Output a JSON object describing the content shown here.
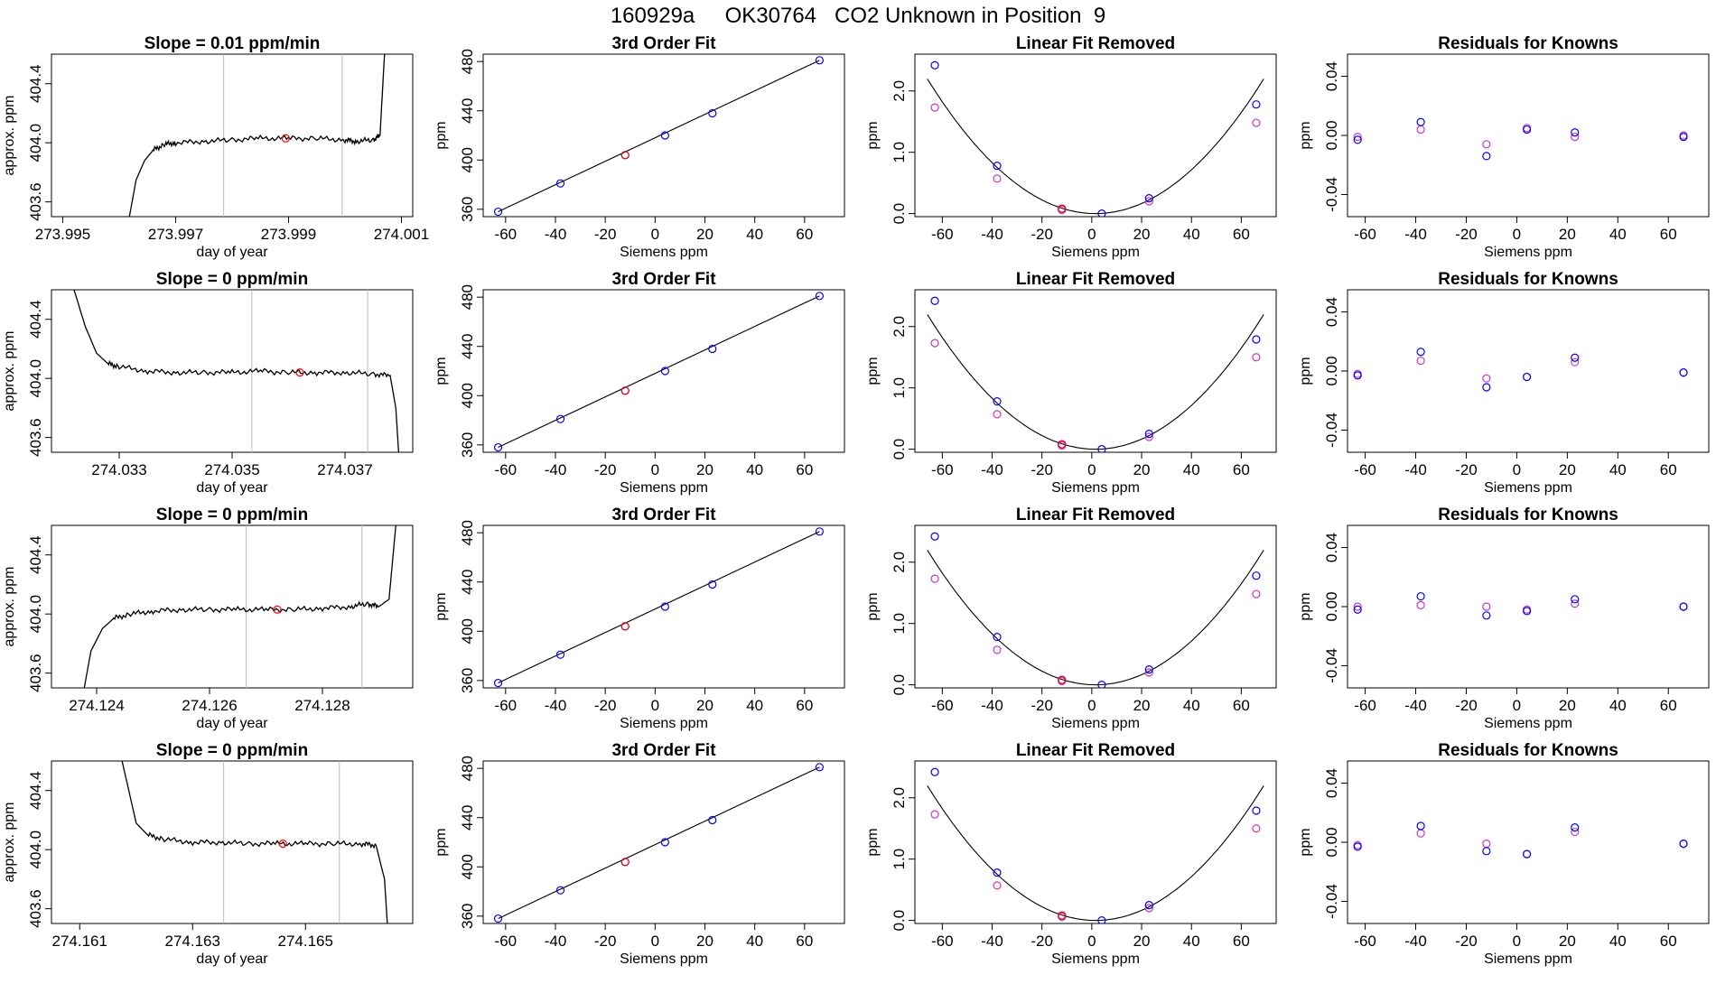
{
  "title": "160929a     OK30764   CO2 Unknown in Position  9",
  "colors": {
    "known": "#0000ff",
    "alt": "#cc33cc",
    "unknown": "#ff0000",
    "line": "#000000",
    "marker": "#bbbbbb"
  },
  "chart_data": [
    {
      "panel": "r1-trace",
      "type": "line",
      "title": "Slope =  0.01  ppm/min",
      "xlabel": "day of year",
      "ylabel": "approx. ppm",
      "xlim": [
        273.9948,
        274.0012
      ],
      "ylim": [
        403.5,
        404.6
      ],
      "xticks": [
        "273.995",
        "273.997",
        "273.999",
        "274.001"
      ],
      "yticks": [
        "403.6",
        "404.0",
        "404.4"
      ],
      "vlines": [
        273.99785,
        273.99995
      ],
      "highlight": [
        273.99895,
        404.03
      ],
      "trace": [
        [
          273.99618,
          403.5
        ],
        [
          273.9963,
          403.75
        ],
        [
          273.99645,
          403.88
        ],
        [
          273.9966,
          403.95
        ],
        [
          273.9968,
          403.99
        ],
        [
          273.997,
          404.0
        ],
        [
          273.9975,
          404.01
        ],
        [
          273.998,
          404.02
        ],
        [
          273.9985,
          404.03
        ],
        [
          273.999,
          404.03
        ],
        [
          273.9995,
          404.03
        ],
        [
          274.0,
          404.02
        ],
        [
          274.0002,
          404.01
        ],
        [
          274.0005,
          404.02
        ],
        [
          274.00062,
          404.05
        ],
        [
          274.0007,
          404.6
        ]
      ]
    },
    {
      "panel": "r1-fit",
      "type": "scatter",
      "title": "3rd Order Fit",
      "xlabel": "Siemens ppm",
      "ylabel": "ppm",
      "xlim": [
        -69,
        76
      ],
      "ylim": [
        354,
        486
      ],
      "xticks": [
        "-60",
        "-40",
        "-20",
        "0",
        "20",
        "40",
        "60"
      ],
      "yticks": [
        "360",
        "400",
        "440",
        "480"
      ],
      "known": [
        [
          -63,
          358
        ],
        [
          -38,
          381
        ],
        [
          -12,
          404
        ],
        [
          4,
          420
        ],
        [
          23,
          438
        ],
        [
          66,
          481
        ]
      ],
      "unknown": [
        [
          -12,
          404
        ]
      ]
    },
    {
      "panel": "r1-linear",
      "type": "scatter",
      "title": "Linear Fit Removed",
      "xlabel": "Siemens ppm",
      "ylabel": "ppm",
      "xlim": [
        -71,
        74
      ],
      "ylim": [
        -0.05,
        2.6
      ],
      "xticks": [
        "-60",
        "-40",
        "-20",
        "0",
        "20",
        "40",
        "60"
      ],
      "yticks": [
        "0.0",
        "1.0",
        "2.0"
      ],
      "known": [
        [
          -63,
          2.42
        ],
        [
          -38,
          0.78
        ],
        [
          -12,
          0.08
        ],
        [
          4,
          0.0
        ],
        [
          23,
          0.25
        ],
        [
          66,
          1.78
        ]
      ],
      "alt": [
        [
          -63,
          1.73
        ],
        [
          -38,
          0.57
        ],
        [
          -12,
          0.06
        ],
        [
          23,
          0.2
        ],
        [
          66,
          1.48
        ]
      ],
      "unknown": [
        [
          -12,
          0.08
        ]
      ]
    },
    {
      "panel": "r1-resid",
      "type": "scatter",
      "title": "Residuals for Knowns",
      "xlabel": "Siemens ppm",
      "ylabel": "ppm",
      "xlim": [
        -67,
        76
      ],
      "ylim": [
        -0.055,
        0.055
      ],
      "xticks": [
        "-60",
        "-40",
        "-20",
        "0",
        "20",
        "40",
        "60"
      ],
      "yticks": [
        "-0.04",
        "0.00",
        "0.04"
      ],
      "known": [
        [
          -63,
          -0.003
        ],
        [
          -38,
          0.009
        ],
        [
          -12,
          -0.014
        ],
        [
          4,
          0.004
        ],
        [
          23,
          0.002
        ],
        [
          66,
          -0.001
        ]
      ],
      "alt": [
        [
          -63,
          -0.001
        ],
        [
          -38,
          0.004
        ],
        [
          -12,
          -0.006
        ],
        [
          4,
          0.005
        ],
        [
          23,
          -0.001
        ],
        [
          66,
          0.0
        ]
      ]
    },
    {
      "panel": "r2-trace",
      "type": "line",
      "title": "Slope =  0  ppm/min",
      "xlabel": "day of year",
      "ylabel": "approx. ppm",
      "xlim": [
        274.0318,
        274.0382
      ],
      "ylim": [
        403.5,
        404.6
      ],
      "xticks": [
        "274.033",
        "274.035",
        "274.037"
      ],
      "yticks": [
        "403.6",
        "404.0",
        "404.4"
      ],
      "vlines": [
        274.03535,
        274.0374
      ],
      "highlight": [
        274.0362,
        404.04
      ],
      "trace": [
        [
          274.0322,
          404.6
        ],
        [
          274.0324,
          404.35
        ],
        [
          274.0326,
          404.17
        ],
        [
          274.0328,
          404.1
        ],
        [
          274.033,
          404.08
        ],
        [
          274.0335,
          404.05
        ],
        [
          274.034,
          404.04
        ],
        [
          274.0345,
          404.04
        ],
        [
          274.035,
          404.04
        ],
        [
          274.0355,
          404.05
        ],
        [
          274.036,
          404.04
        ],
        [
          274.0365,
          404.04
        ],
        [
          274.037,
          404.04
        ],
        [
          274.0375,
          404.03
        ],
        [
          274.0378,
          404.02
        ],
        [
          274.0379,
          403.8
        ],
        [
          274.03795,
          403.5
        ]
      ]
    },
    {
      "panel": "r2-fit",
      "type": "scatter",
      "title": "3rd Order Fit",
      "xlabel": "Siemens ppm",
      "ylabel": "ppm",
      "xlim": [
        -69,
        76
      ],
      "ylim": [
        354,
        486
      ],
      "xticks": [
        "-60",
        "-40",
        "-20",
        "0",
        "20",
        "40",
        "60"
      ],
      "yticks": [
        "360",
        "400",
        "440",
        "480"
      ],
      "known": [
        [
          -63,
          358
        ],
        [
          -38,
          381
        ],
        [
          -12,
          404
        ],
        [
          4,
          420
        ],
        [
          23,
          438
        ],
        [
          66,
          481
        ]
      ],
      "unknown": [
        [
          -12,
          404
        ]
      ]
    },
    {
      "panel": "r2-linear",
      "type": "scatter",
      "title": "Linear Fit Removed",
      "xlabel": "Siemens ppm",
      "ylabel": "ppm",
      "xlim": [
        -71,
        74
      ],
      "ylim": [
        -0.05,
        2.6
      ],
      "xticks": [
        "-60",
        "-40",
        "-20",
        "0",
        "20",
        "40",
        "60"
      ],
      "yticks": [
        "0.0",
        "1.0",
        "2.0"
      ],
      "known": [
        [
          -63,
          2.42
        ],
        [
          -38,
          0.78
        ],
        [
          -12,
          0.08
        ],
        [
          4,
          0.0
        ],
        [
          23,
          0.25
        ],
        [
          66,
          1.79
        ]
      ],
      "alt": [
        [
          -63,
          1.73
        ],
        [
          -38,
          0.57
        ],
        [
          -12,
          0.06
        ],
        [
          23,
          0.2
        ],
        [
          66,
          1.5
        ]
      ],
      "unknown": [
        [
          -12,
          0.08
        ]
      ]
    },
    {
      "panel": "r2-resid",
      "type": "scatter",
      "title": "Residuals for Knowns",
      "xlabel": "Siemens ppm",
      "ylabel": "ppm",
      "xlim": [
        -67,
        76
      ],
      "ylim": [
        -0.055,
        0.055
      ],
      "xticks": [
        "-60",
        "-40",
        "-20",
        "0",
        "20",
        "40",
        "60"
      ],
      "yticks": [
        "-0.04",
        "0.00",
        "0.04"
      ],
      "known": [
        [
          -63,
          -0.003
        ],
        [
          -38,
          0.013
        ],
        [
          -12,
          -0.011
        ],
        [
          4,
          -0.004
        ],
        [
          23,
          0.009
        ],
        [
          66,
          -0.001
        ]
      ],
      "alt": [
        [
          -63,
          -0.002
        ],
        [
          -38,
          0.007
        ],
        [
          -12,
          -0.005
        ],
        [
          4,
          -0.004
        ],
        [
          23,
          0.006
        ],
        [
          66,
          -0.001
        ]
      ]
    },
    {
      "panel": "r3-trace",
      "type": "line",
      "title": "Slope =  0  ppm/min",
      "xlabel": "day of year",
      "ylabel": "approx. ppm",
      "xlim": [
        274.1232,
        274.1296
      ],
      "ylim": [
        403.5,
        404.6
      ],
      "xticks": [
        "274.124",
        "274.126",
        "274.128"
      ],
      "yticks": [
        "403.6",
        "404.0",
        "404.4"
      ],
      "vlines": [
        274.12665,
        274.1287
      ],
      "highlight": [
        274.1272,
        404.03
      ],
      "trace": [
        [
          274.12378,
          403.5
        ],
        [
          274.1239,
          403.75
        ],
        [
          274.1241,
          403.9
        ],
        [
          274.1243,
          403.97
        ],
        [
          274.1246,
          404.0
        ],
        [
          274.125,
          404.02
        ],
        [
          274.1255,
          404.03
        ],
        [
          274.126,
          404.03
        ],
        [
          274.1265,
          404.03
        ],
        [
          274.127,
          404.03
        ],
        [
          274.1275,
          404.03
        ],
        [
          274.128,
          404.04
        ],
        [
          274.1285,
          404.05
        ],
        [
          274.1288,
          404.07
        ],
        [
          274.129,
          404.05
        ],
        [
          274.12918,
          404.1
        ],
        [
          274.1293,
          404.6
        ]
      ]
    },
    {
      "panel": "r3-fit",
      "type": "scatter",
      "title": "3rd Order Fit",
      "xlabel": "Siemens ppm",
      "ylabel": "ppm",
      "xlim": [
        -69,
        76
      ],
      "ylim": [
        354,
        486
      ],
      "xticks": [
        "-60",
        "-40",
        "-20",
        "0",
        "20",
        "40",
        "60"
      ],
      "yticks": [
        "360",
        "400",
        "440",
        "480"
      ],
      "known": [
        [
          -63,
          358
        ],
        [
          -38,
          381
        ],
        [
          -12,
          404
        ],
        [
          4,
          420
        ],
        [
          23,
          438
        ],
        [
          66,
          481
        ]
      ],
      "unknown": [
        [
          -12,
          404
        ]
      ]
    },
    {
      "panel": "r3-linear",
      "type": "scatter",
      "title": "Linear Fit Removed",
      "xlabel": "Siemens ppm",
      "ylabel": "ppm",
      "xlim": [
        -71,
        74
      ],
      "ylim": [
        -0.05,
        2.6
      ],
      "xticks": [
        "-60",
        "-40",
        "-20",
        "0",
        "20",
        "40",
        "60"
      ],
      "yticks": [
        "0.0",
        "1.0",
        "2.0"
      ],
      "known": [
        [
          -63,
          2.42
        ],
        [
          -38,
          0.78
        ],
        [
          -12,
          0.08
        ],
        [
          4,
          0.0
        ],
        [
          23,
          0.25
        ],
        [
          66,
          1.78
        ]
      ],
      "alt": [
        [
          -63,
          1.73
        ],
        [
          -38,
          0.57
        ],
        [
          -12,
          0.06
        ],
        [
          23,
          0.2
        ],
        [
          66,
          1.48
        ]
      ],
      "unknown": [
        [
          -12,
          0.08
        ]
      ]
    },
    {
      "panel": "r3-resid",
      "type": "scatter",
      "title": "Residuals for Knowns",
      "xlabel": "Siemens ppm",
      "ylabel": "ppm",
      "xlim": [
        -67,
        76
      ],
      "ylim": [
        -0.055,
        0.055
      ],
      "xticks": [
        "-60",
        "-40",
        "-20",
        "0",
        "20",
        "40",
        "60"
      ],
      "yticks": [
        "-0.04",
        "0.00",
        "0.04"
      ],
      "known": [
        [
          -63,
          -0.002
        ],
        [
          -38,
          0.007
        ],
        [
          -12,
          -0.006
        ],
        [
          4,
          -0.003
        ],
        [
          23,
          0.005
        ],
        [
          66,
          0.0
        ]
      ],
      "alt": [
        [
          -63,
          0.0
        ],
        [
          -38,
          0.001
        ],
        [
          -12,
          0.0
        ],
        [
          4,
          -0.002
        ],
        [
          23,
          0.002
        ],
        [
          66,
          0.0
        ]
      ]
    },
    {
      "panel": "r4-trace",
      "type": "line",
      "title": "Slope =  0  ppm/min",
      "xlabel": "day of year",
      "ylabel": "approx. ppm",
      "xlim": [
        274.1605,
        274.1669
      ],
      "ylim": [
        403.5,
        404.6
      ],
      "xticks": [
        "274.161",
        "274.163",
        "274.165"
      ],
      "yticks": [
        "403.6",
        "404.0",
        "404.4"
      ],
      "vlines": [
        274.16355,
        274.1656
      ],
      "highlight": [
        274.1646,
        404.04
      ],
      "trace": [
        [
          274.16175,
          404.6
        ],
        [
          274.1619,
          404.35
        ],
        [
          274.162,
          404.18
        ],
        [
          274.1622,
          404.1
        ],
        [
          274.1625,
          404.07
        ],
        [
          274.163,
          404.05
        ],
        [
          274.1635,
          404.05
        ],
        [
          274.164,
          404.04
        ],
        [
          274.1645,
          404.04
        ],
        [
          274.165,
          404.04
        ],
        [
          274.1655,
          404.04
        ],
        [
          274.166,
          404.04
        ],
        [
          274.16625,
          404.03
        ],
        [
          274.1664,
          403.8
        ],
        [
          274.16645,
          403.5
        ]
      ]
    },
    {
      "panel": "r4-fit",
      "type": "scatter",
      "title": "3rd Order Fit",
      "xlabel": "Siemens ppm",
      "ylabel": "ppm",
      "xlim": [
        -69,
        76
      ],
      "ylim": [
        354,
        486
      ],
      "xticks": [
        "-60",
        "-40",
        "-20",
        "0",
        "20",
        "40",
        "60"
      ],
      "yticks": [
        "360",
        "400",
        "440",
        "480"
      ],
      "known": [
        [
          -63,
          358
        ],
        [
          -38,
          381
        ],
        [
          -12,
          404
        ],
        [
          4,
          420
        ],
        [
          23,
          438
        ],
        [
          66,
          481
        ]
      ],
      "unknown": [
        [
          -12,
          404
        ]
      ]
    },
    {
      "panel": "r4-linear",
      "type": "scatter",
      "title": "Linear Fit Removed",
      "xlabel": "Siemens ppm",
      "ylabel": "ppm",
      "xlim": [
        -71,
        74
      ],
      "ylim": [
        -0.05,
        2.6
      ],
      "xticks": [
        "-60",
        "-40",
        "-20",
        "0",
        "20",
        "40",
        "60"
      ],
      "yticks": [
        "0.0",
        "1.0",
        "2.0"
      ],
      "known": [
        [
          -63,
          2.42
        ],
        [
          -38,
          0.78
        ],
        [
          -12,
          0.08
        ],
        [
          4,
          0.0
        ],
        [
          23,
          0.25
        ],
        [
          66,
          1.79
        ]
      ],
      "alt": [
        [
          -63,
          1.73
        ],
        [
          -38,
          0.57
        ],
        [
          -12,
          0.06
        ],
        [
          23,
          0.2
        ],
        [
          66,
          1.5
        ]
      ],
      "unknown": [
        [
          -12,
          0.08
        ]
      ]
    },
    {
      "panel": "r4-resid",
      "type": "scatter",
      "title": "Residuals for Knowns",
      "xlabel": "Siemens ppm",
      "ylabel": "ppm",
      "xlim": [
        -67,
        76
      ],
      "ylim": [
        -0.055,
        0.055
      ],
      "xticks": [
        "-60",
        "-40",
        "-20",
        "0",
        "20",
        "40",
        "60"
      ],
      "yticks": [
        "-0.04",
        "0.00",
        "0.04"
      ],
      "known": [
        [
          -63,
          -0.003
        ],
        [
          -38,
          0.011
        ],
        [
          -12,
          -0.006
        ],
        [
          4,
          -0.008
        ],
        [
          23,
          0.01
        ],
        [
          66,
          -0.001
        ]
      ],
      "alt": [
        [
          -63,
          -0.002
        ],
        [
          -38,
          0.006
        ],
        [
          -12,
          -0.001
        ],
        [
          4,
          -0.008
        ],
        [
          23,
          0.007
        ],
        [
          66,
          -0.001
        ]
      ]
    }
  ]
}
